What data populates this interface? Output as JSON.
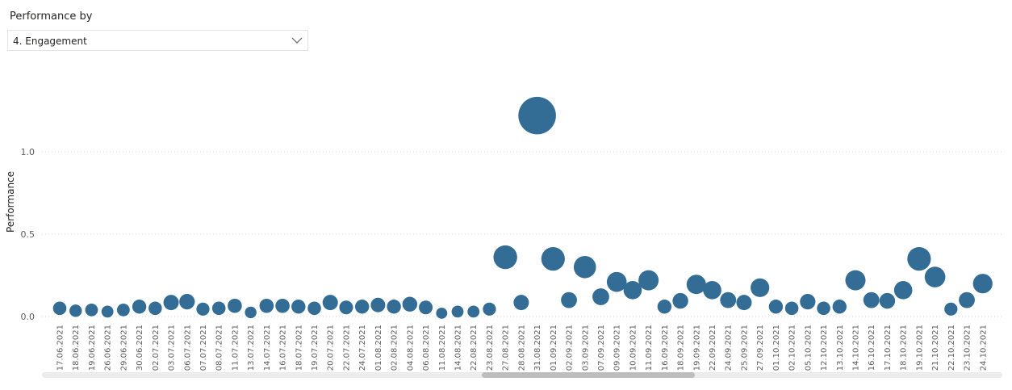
{
  "slicer": {
    "label": "Performance by",
    "selected": "4. Engagement"
  },
  "colors": {
    "bubble": "#336d96",
    "grid": "#d9d9d9",
    "axis_text": "#605e5c"
  },
  "chart_data": {
    "type": "scatter",
    "title": "",
    "xlabel": "",
    "ylabel": "Performance",
    "ylim": [
      0,
      1.2
    ],
    "yticks": [
      "0.0",
      "0.5",
      "1.0"
    ],
    "grid": true,
    "categories": [
      "17.06.2021",
      "18.06.2021",
      "19.06.2021",
      "26.06.2021",
      "29.06.2021",
      "30.06.2021",
      "02.07.2021",
      "03.07.2021",
      "06.07.2021",
      "07.07.2021",
      "08.07.2021",
      "11.07.2021",
      "13.07.2021",
      "14.07.2021",
      "16.07.2021",
      "18.07.2021",
      "19.07.2021",
      "20.07.2021",
      "22.07.2021",
      "24.07.2021",
      "01.08.2021",
      "02.08.2021",
      "04.08.2021",
      "06.08.2021",
      "11.08.2021",
      "14.08.2021",
      "22.08.2021",
      "23.08.2021",
      "27.08.2021",
      "28.08.2021",
      "31.08.2021",
      "01.09.2021",
      "02.09.2021",
      "03.09.2021",
      "07.09.2021",
      "09.09.2021",
      "10.09.2021",
      "11.09.2021",
      "16.09.2021",
      "18.09.2021",
      "19.09.2021",
      "22.09.2021",
      "24.09.2021",
      "25.09.2021",
      "27.09.2021",
      "01.10.2021",
      "02.10.2021",
      "05.10.2021",
      "12.10.2021",
      "13.10.2021",
      "14.10.2021",
      "16.10.2021",
      "17.10.2021",
      "18.10.2021",
      "19.10.2021",
      "21.10.2021",
      "22.10.2021",
      "23.10.2021",
      "24.10.2021"
    ],
    "values": [
      0.05,
      0.035,
      0.04,
      0.03,
      0.04,
      0.06,
      0.05,
      0.085,
      0.09,
      0.045,
      0.05,
      0.065,
      0.025,
      0.065,
      0.065,
      0.06,
      0.05,
      0.085,
      0.055,
      0.06,
      0.07,
      0.06,
      0.075,
      0.055,
      0.02,
      0.03,
      0.03,
      0.045,
      0.36,
      0.085,
      1.22,
      0.35,
      0.1,
      0.3,
      0.12,
      0.21,
      0.16,
      0.22,
      0.06,
      0.095,
      0.195,
      0.16,
      0.1,
      0.085,
      0.175,
      0.06,
      0.05,
      0.09,
      0.05,
      0.06,
      0.22,
      0.1,
      0.095,
      0.16,
      0.35,
      0.24,
      0.045,
      0.1,
      0.2
    ]
  }
}
